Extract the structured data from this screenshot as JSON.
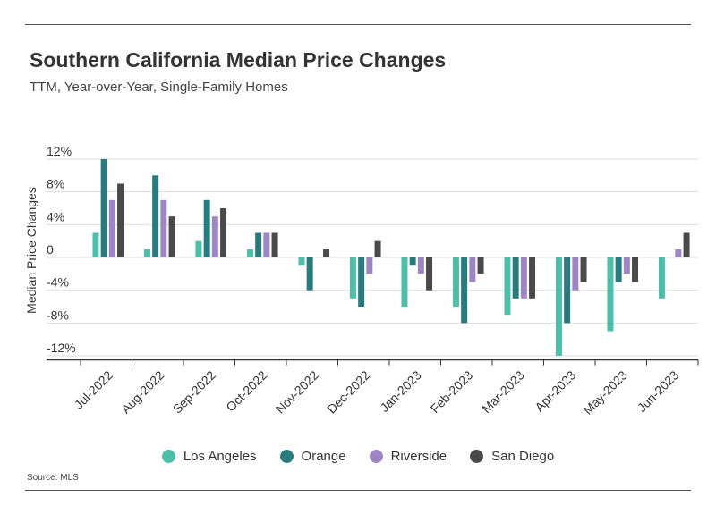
{
  "chart_data": {
    "type": "bar",
    "title": "Southern California Median Price Changes",
    "subtitle": "TTM, Year-over-Year, Single-Family Homes",
    "ylabel": "Median Price Changes",
    "xlabel": "",
    "ylim": [
      -12.5,
      12.5
    ],
    "yticks": [
      12,
      8,
      4,
      0,
      -4,
      -8,
      -12
    ],
    "ytick_labels": [
      "12%",
      "8%",
      "4%",
      "0",
      "-4%",
      "-8%",
      "-12%"
    ],
    "categories": [
      "Jul-2022",
      "Aug-2022",
      "Sep-2022",
      "Oct-2022",
      "Nov-2022",
      "Dec-2022",
      "Jan-2023",
      "Feb-2023",
      "Mar-2023",
      "Apr-2023",
      "May-2023",
      "Jun-2023"
    ],
    "series": [
      {
        "name": "Los Angeles",
        "color": "#4dbfa8",
        "values": [
          3,
          1,
          2,
          1,
          -1,
          -5,
          -6,
          -6,
          -7,
          -12,
          -9,
          -5
        ]
      },
      {
        "name": "Orange",
        "color": "#2a7b7e",
        "values": [
          12,
          10,
          7,
          3,
          -4,
          -6,
          -1,
          -8,
          -5,
          -8,
          -3,
          0
        ]
      },
      {
        "name": "Riverside",
        "color": "#9e86c4",
        "values": [
          7,
          7,
          5,
          3,
          0,
          -2,
          -2,
          -3,
          -5,
          -4,
          -2,
          1
        ]
      },
      {
        "name": "San Diego",
        "color": "#4a4a4a",
        "values": [
          9,
          5,
          6,
          3,
          1,
          2,
          -4,
          -2,
          -5,
          -3,
          -3,
          3
        ]
      }
    ],
    "grid": true,
    "legend_position": "bottom"
  },
  "source": "Source: MLS"
}
